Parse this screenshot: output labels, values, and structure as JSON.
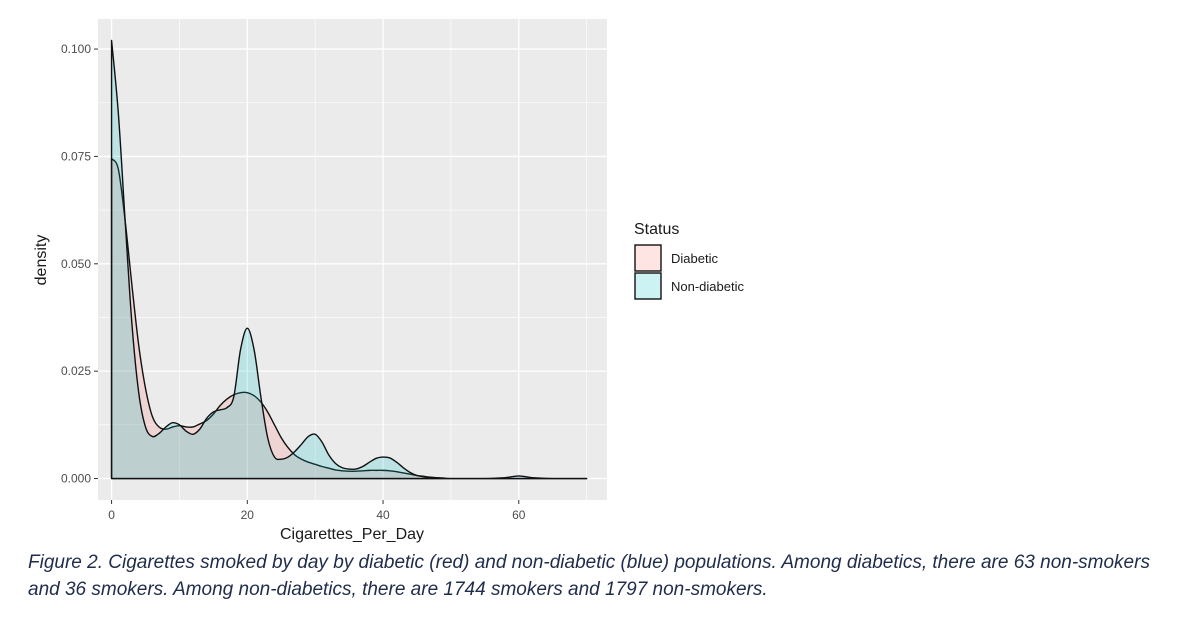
{
  "chart_data": {
    "type": "area",
    "title": "",
    "xlabel": "Cigarettes_Per_Day",
    "ylabel": "density",
    "xlim": [
      -2,
      73
    ],
    "ylim": [
      -0.005,
      0.107
    ],
    "x_ticks": [
      0,
      20,
      40,
      60
    ],
    "x_tick_labels": [
      "0",
      "20",
      "40",
      "60"
    ],
    "y_ticks": [
      0,
      0.025,
      0.05,
      0.075,
      0.1
    ],
    "y_tick_labels": [
      "0.000",
      "0.025",
      "0.050",
      "0.075",
      "0.100"
    ],
    "grid": true,
    "legend": {
      "title": "Status",
      "placement": "right",
      "entries": [
        "Diabetic",
        "Non-diabetic"
      ]
    },
    "series": [
      {
        "name": "Diabetic",
        "color": "#F8766D",
        "x": [
          0,
          1,
          2,
          3,
          4,
          5,
          6,
          7,
          8,
          9,
          10,
          11,
          12,
          13,
          14,
          15,
          16,
          17,
          18,
          19,
          20,
          21,
          22,
          23,
          24,
          25,
          26,
          27,
          28,
          29,
          30,
          31,
          32,
          33,
          34,
          35,
          36,
          37,
          38,
          39,
          40,
          41,
          42,
          43,
          44,
          45,
          46,
          47,
          48,
          49,
          50,
          55,
          60,
          65,
          70
        ],
        "values": [
          0.0745,
          0.072,
          0.06,
          0.045,
          0.031,
          0.021,
          0.0145,
          0.012,
          0.0115,
          0.012,
          0.0123,
          0.012,
          0.012,
          0.0127,
          0.0135,
          0.015,
          0.017,
          0.0185,
          0.0195,
          0.02,
          0.02,
          0.0193,
          0.0178,
          0.0155,
          0.0125,
          0.0095,
          0.0072,
          0.0055,
          0.0045,
          0.0038,
          0.0033,
          0.0028,
          0.0024,
          0.002,
          0.0018,
          0.0017,
          0.0017,
          0.0018,
          0.0019,
          0.0019,
          0.0019,
          0.0018,
          0.0016,
          0.0013,
          0.001,
          0.0007,
          0.0005,
          0.0003,
          0.0002,
          0.0001,
          0.0,
          0.0,
          0.0,
          0.0,
          0.0
        ]
      },
      {
        "name": "Non-diabetic",
        "color": "#00BFC4",
        "x": [
          0,
          1,
          2,
          3,
          4,
          5,
          6,
          7,
          8,
          9,
          10,
          11,
          12,
          13,
          14,
          15,
          16,
          17,
          18,
          19,
          20,
          21,
          22,
          23,
          24,
          25,
          26,
          27,
          28,
          29,
          30,
          31,
          32,
          33,
          34,
          35,
          36,
          37,
          38,
          39,
          40,
          41,
          42,
          43,
          44,
          45,
          46,
          47,
          48,
          50,
          55,
          58,
          60,
          62,
          65,
          70
        ],
        "values": [
          0.102,
          0.085,
          0.06,
          0.036,
          0.02,
          0.012,
          0.0098,
          0.0105,
          0.012,
          0.013,
          0.0125,
          0.011,
          0.0103,
          0.0115,
          0.014,
          0.0155,
          0.016,
          0.0165,
          0.019,
          0.03,
          0.035,
          0.03,
          0.019,
          0.0095,
          0.005,
          0.0045,
          0.005,
          0.0063,
          0.008,
          0.0098,
          0.0103,
          0.0085,
          0.0055,
          0.0035,
          0.0025,
          0.0022,
          0.0022,
          0.0028,
          0.0038,
          0.0047,
          0.005,
          0.0048,
          0.0038,
          0.0025,
          0.0014,
          0.0007,
          0.0004,
          0.0002,
          0.0001,
          0.0,
          0.0,
          0.0002,
          0.0006,
          0.0002,
          0.0,
          0.0
        ]
      }
    ]
  },
  "caption": "Figure 2. Cigarettes smoked by day by diabetic (red) and non-diabetic (blue) populations. Among diabetics, there are 63 non-smokers and 36 smokers. Among non-diabetics, there are 1744 smokers and 1797 non-smokers."
}
